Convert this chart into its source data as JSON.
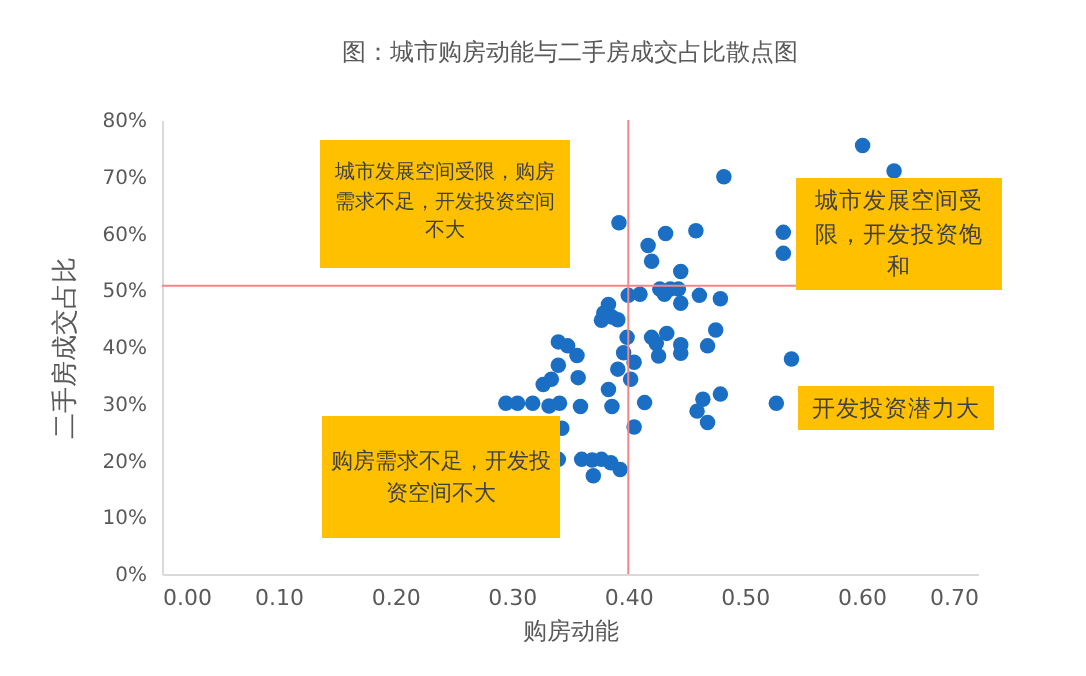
{
  "chart_data": {
    "type": "scatter",
    "title": "图：城市购房动能与二手房成交占比散点图",
    "xlabel": "购房动能",
    "ylabel": "二手房成交占比",
    "xlim": [
      0,
      0.7
    ],
    "xticks": [
      {
        "value": 0,
        "label": "0.00"
      },
      {
        "value": 0.1,
        "label": "0.10"
      },
      {
        "value": 0.2,
        "label": "0.20"
      },
      {
        "value": 0.3,
        "label": "0.30"
      },
      {
        "value": 0.4,
        "label": "0.40"
      },
      {
        "value": 0.5,
        "label": "0.50"
      },
      {
        "value": 0.6,
        "label": "0.60"
      },
      {
        "value": 0.7,
        "label": "0.70"
      }
    ],
    "ylim": [
      0,
      80
    ],
    "yticks": [
      {
        "value": 0,
        "label": "0%"
      },
      {
        "value": 10,
        "label": "10%"
      },
      {
        "value": 20,
        "label": "20%"
      },
      {
        "value": 30,
        "label": "30%"
      },
      {
        "value": 40,
        "label": "40%"
      },
      {
        "value": 50,
        "label": "50%"
      },
      {
        "value": 60,
        "label": "60%"
      },
      {
        "value": 70,
        "label": "70%"
      },
      {
        "value": 80,
        "label": "80%"
      }
    ],
    "grid": false,
    "marker": "circle",
    "series": [
      {
        "color": "#1a6fc4",
        "x": [
          0.601,
          0.628,
          0.482,
          0.392,
          0.432,
          0.458,
          0.533,
          0.533,
          0.417,
          0.42,
          0.445,
          0.427,
          0.436,
          0.443,
          0.431,
          0.4,
          0.41,
          0.461,
          0.479,
          0.445,
          0.383,
          0.379,
          0.386,
          0.377,
          0.391,
          0.475,
          0.399,
          0.42,
          0.433,
          0.34,
          0.348,
          0.424,
          0.445,
          0.468,
          0.396,
          0.426,
          0.445,
          0.356,
          0.54,
          0.34,
          0.405,
          0.391,
          0.402,
          0.357,
          0.334,
          0.327,
          0.383,
          0.479,
          0.464,
          0.295,
          0.305,
          0.318,
          0.332,
          0.341,
          0.359,
          0.386,
          0.414,
          0.527,
          0.459,
          0.468,
          0.343,
          0.405,
          0.34,
          0.36,
          0.369,
          0.377,
          0.385,
          0.37,
          0.393
        ],
        "values": [
          75.5,
          71.0,
          70.0,
          61.9,
          60.0,
          60.5,
          60.2,
          56.5,
          57.9,
          55.1,
          53.3,
          50.2,
          50.2,
          50.2,
          49.3,
          49.1,
          49.3,
          49.1,
          48.5,
          47.7,
          47.5,
          46.0,
          45.3,
          44.7,
          44.8,
          43.0,
          41.7,
          41.7,
          42.4,
          40.9,
          40.2,
          40.6,
          40.4,
          40.2,
          39.0,
          38.4,
          38.9,
          38.5,
          37.9,
          36.8,
          37.3,
          36.1,
          34.3,
          34.6,
          34.3,
          33.4,
          32.5,
          31.7,
          30.8,
          30.1,
          30.1,
          30.1,
          29.6,
          30.1,
          29.5,
          29.5,
          30.2,
          30.1,
          28.7,
          26.7,
          25.7,
          25.9,
          20.2,
          20.2,
          20.1,
          20.2,
          19.6,
          17.3,
          18.4
        ]
      }
    ],
    "ref_lines": [
      {
        "axis": "x",
        "value": 0.4,
        "color": "#f4868a"
      },
      {
        "axis": "y",
        "value": 50.8,
        "color": "#f4868a"
      }
    ],
    "annotations": [
      "城市发展空间受限，购房需求不足，开发投资空间不大",
      "城市发展空间受限，开发投资饱和",
      "开发投资潜力大",
      "购房需求不足，开发投资空间不大"
    ]
  }
}
